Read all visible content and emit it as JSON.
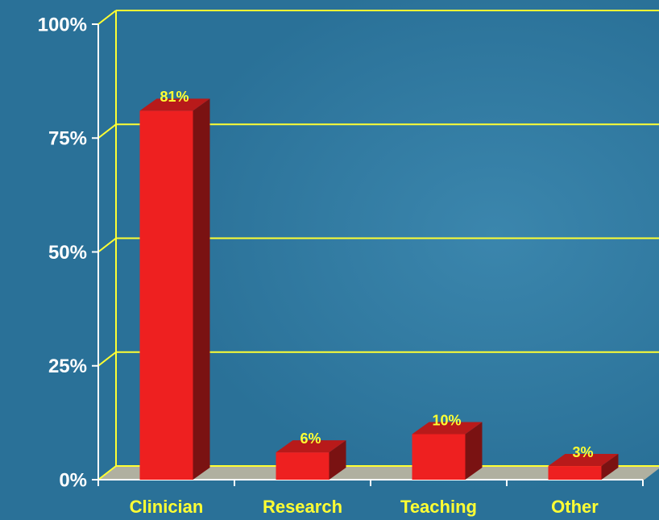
{
  "chart_data": {
    "type": "bar3d",
    "categories": [
      "Clinician",
      "Research",
      "Teaching",
      "Other"
    ],
    "values": [
      81,
      6,
      10,
      3
    ],
    "value_labels": [
      "81%",
      "6%",
      "10%",
      "3%"
    ],
    "color": "#ee2020",
    "ylim": [
      0,
      100
    ],
    "yticks": [
      {
        "value": 0,
        "label": "0%"
      },
      {
        "value": 25,
        "label": "25%"
      },
      {
        "value": 50,
        "label": "50%"
      },
      {
        "value": 75,
        "label": "75%"
      },
      {
        "value": 100,
        "label": "100%"
      }
    ],
    "grid": true
  }
}
